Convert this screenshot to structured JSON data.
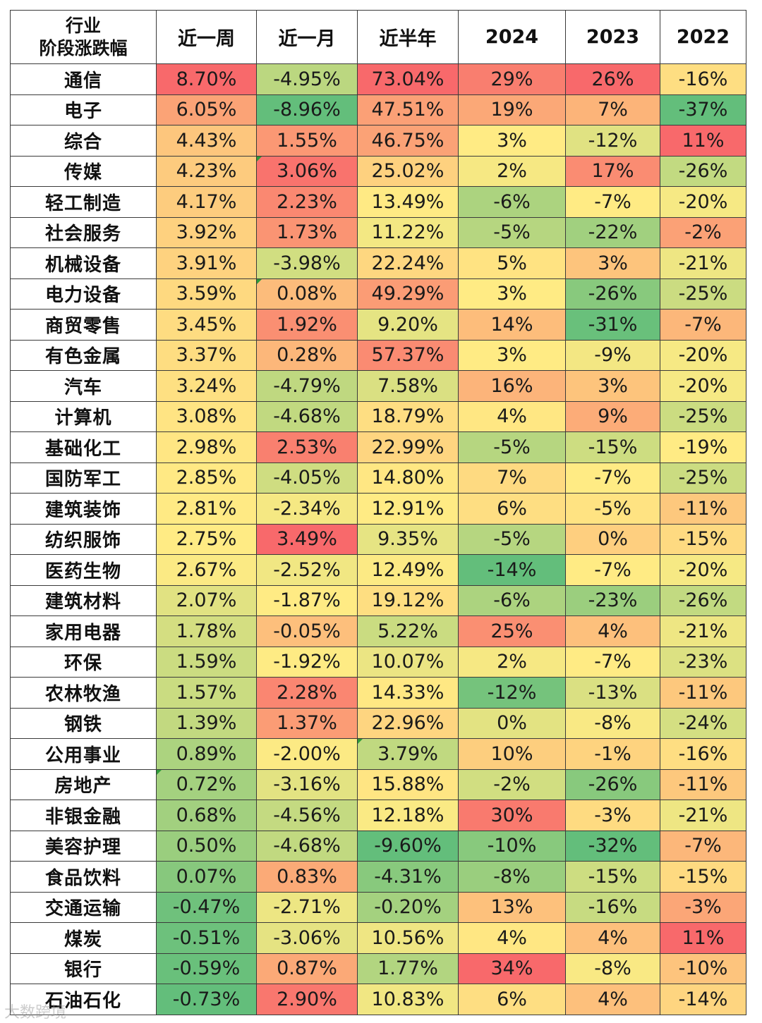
{
  "header": {
    "corner_line1": "行业",
    "corner_line2": "阶段涨跌幅",
    "columns": [
      "近一周",
      "近一月",
      "近半年",
      "2024",
      "2023",
      "2022"
    ]
  },
  "chart_data": {
    "type": "heatmap",
    "columns": [
      "近一周",
      "近一月",
      "近半年",
      "2024",
      "2023",
      "2022"
    ],
    "rows": [
      {
        "name": "通信",
        "values": [
          "8.70%",
          "-4.95%",
          "73.04%",
          "29%",
          "26%",
          "-16%"
        ]
      },
      {
        "name": "电子",
        "values": [
          "6.05%",
          "-8.96%",
          "47.51%",
          "19%",
          "7%",
          "-37%"
        ]
      },
      {
        "name": "综合",
        "values": [
          "4.43%",
          "1.55%",
          "46.75%",
          "3%",
          "-12%",
          "11%"
        ]
      },
      {
        "name": "传媒",
        "values": [
          "4.23%",
          "3.06%",
          "25.02%",
          "2%",
          "17%",
          "-26%"
        ]
      },
      {
        "name": "轻工制造",
        "values": [
          "4.17%",
          "2.23%",
          "13.49%",
          "-6%",
          "-7%",
          "-20%"
        ]
      },
      {
        "name": "社会服务",
        "values": [
          "3.92%",
          "1.73%",
          "11.22%",
          "-5%",
          "-22%",
          "-2%"
        ]
      },
      {
        "name": "机械设备",
        "values": [
          "3.91%",
          "-3.98%",
          "22.24%",
          "5%",
          "3%",
          "-21%"
        ]
      },
      {
        "name": "电力设备",
        "values": [
          "3.59%",
          "0.08%",
          "49.29%",
          "3%",
          "-26%",
          "-25%"
        ]
      },
      {
        "name": "商贸零售",
        "values": [
          "3.45%",
          "1.92%",
          "9.20%",
          "14%",
          "-31%",
          "-7%"
        ]
      },
      {
        "name": "有色金属",
        "values": [
          "3.37%",
          "0.28%",
          "57.37%",
          "3%",
          "-9%",
          "-20%"
        ]
      },
      {
        "name": "汽车",
        "values": [
          "3.24%",
          "-4.79%",
          "7.58%",
          "16%",
          "3%",
          "-20%"
        ]
      },
      {
        "name": "计算机",
        "values": [
          "3.08%",
          "-4.68%",
          "18.79%",
          "4%",
          "9%",
          "-25%"
        ]
      },
      {
        "name": "基础化工",
        "values": [
          "2.98%",
          "2.53%",
          "22.99%",
          "-5%",
          "-15%",
          "-19%"
        ]
      },
      {
        "name": "国防军工",
        "values": [
          "2.85%",
          "-4.05%",
          "14.80%",
          "7%",
          "-7%",
          "-25%"
        ]
      },
      {
        "name": "建筑装饰",
        "values": [
          "2.81%",
          "-2.34%",
          "12.91%",
          "6%",
          "-5%",
          "-11%"
        ]
      },
      {
        "name": "纺织服饰",
        "values": [
          "2.75%",
          "3.49%",
          "9.35%",
          "-5%",
          "0%",
          "-15%"
        ]
      },
      {
        "name": "医药生物",
        "values": [
          "2.67%",
          "-2.52%",
          "12.49%",
          "-14%",
          "-7%",
          "-20%"
        ]
      },
      {
        "name": "建筑材料",
        "values": [
          "2.07%",
          "-1.87%",
          "19.12%",
          "-6%",
          "-23%",
          "-26%"
        ]
      },
      {
        "name": "家用电器",
        "values": [
          "1.78%",
          "-0.05%",
          "5.22%",
          "25%",
          "4%",
          "-21%"
        ]
      },
      {
        "name": "环保",
        "values": [
          "1.59%",
          "-1.92%",
          "10.07%",
          "2%",
          "-7%",
          "-23%"
        ]
      },
      {
        "name": "农林牧渔",
        "values": [
          "1.57%",
          "2.28%",
          "14.33%",
          "-12%",
          "-13%",
          "-11%"
        ]
      },
      {
        "name": "钢铁",
        "values": [
          "1.39%",
          "1.37%",
          "22.96%",
          "0%",
          "-8%",
          "-24%"
        ]
      },
      {
        "name": "公用事业",
        "values": [
          "0.89%",
          "-2.00%",
          "3.79%",
          "10%",
          "-1%",
          "-16%"
        ]
      },
      {
        "name": "房地产",
        "values": [
          "0.72%",
          "-3.16%",
          "15.88%",
          "-2%",
          "-26%",
          "-11%"
        ]
      },
      {
        "name": "非银金融",
        "values": [
          "0.68%",
          "-4.56%",
          "12.18%",
          "30%",
          "-3%",
          "-21%"
        ]
      },
      {
        "name": "美容护理",
        "values": [
          "0.50%",
          "-4.68%",
          "-9.60%",
          "-10%",
          "-32%",
          "-7%"
        ]
      },
      {
        "name": "食品饮料",
        "values": [
          "0.07%",
          "0.83%",
          "-4.31%",
          "-8%",
          "-15%",
          "-15%"
        ]
      },
      {
        "name": "交通运输",
        "values": [
          "-0.47%",
          "-2.71%",
          "-0.20%",
          "13%",
          "-16%",
          "-3%"
        ]
      },
      {
        "name": "煤炭",
        "values": [
          "-0.51%",
          "-3.06%",
          "10.56%",
          "4%",
          "4%",
          "11%"
        ]
      },
      {
        "name": "银行",
        "values": [
          "-0.59%",
          "0.87%",
          "1.77%",
          "34%",
          "-8%",
          "-10%"
        ]
      },
      {
        "name": "石油石化",
        "values": [
          "-0.73%",
          "2.90%",
          "10.83%",
          "6%",
          "4%",
          "-14%"
        ]
      }
    ],
    "color_scale": {
      "low": "#63be7b",
      "mid": "#ffeb84",
      "high": "#f8696b"
    }
  },
  "watermark": "大数跨境"
}
